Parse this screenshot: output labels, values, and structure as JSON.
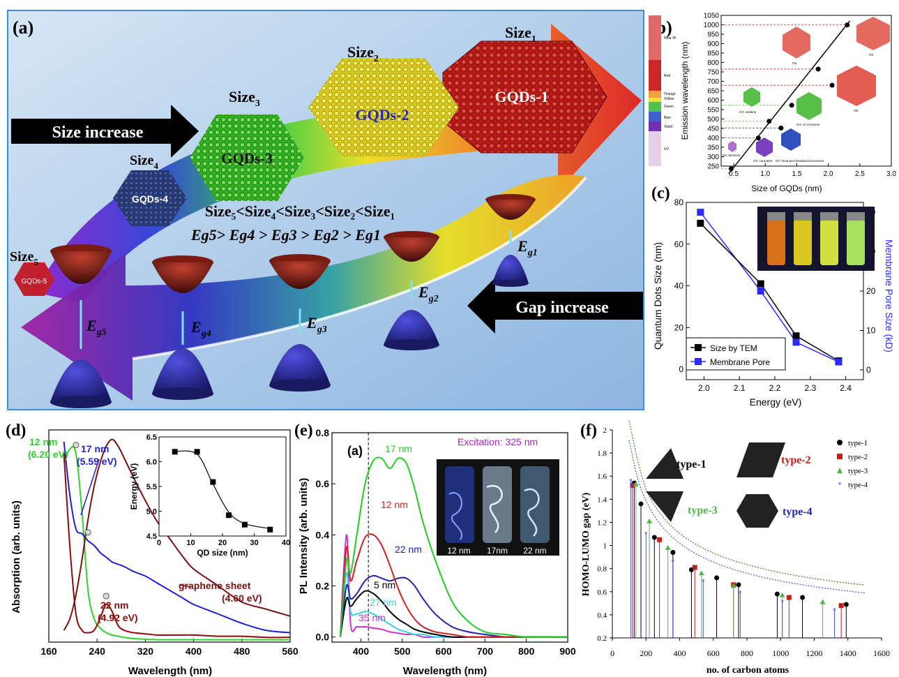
{
  "panel_a": {
    "label": "(a)",
    "sizes": [
      "Size",
      "Size",
      "Size",
      "Size",
      "Size"
    ],
    "size_subs": [
      "1",
      "2",
      "3",
      "4",
      "5"
    ],
    "gqds": [
      "GQDs-1",
      "GQDs-2",
      "GQDs-3",
      "GQDs-4",
      "GQDs-5"
    ],
    "size_increase": "Size increase",
    "gap_increase": "Gap increase",
    "ineq_size": "Size₅<Size₄<Size₃<Size₂<Size₁",
    "ineq_energy": "Eg5> Eg4 > Eg3 > Eg2 > Eg1",
    "gap_labels": [
      "E",
      "E",
      "E",
      "E",
      "E"
    ],
    "gap_subs": [
      "g1",
      "g2",
      "g3",
      "g4",
      "g5"
    ],
    "colors": {
      "bg": "#a6c6e6",
      "frame": "#3a8fd0",
      "cone_top": "#8e1b12",
      "cone_bottom": "#23238a",
      "gap_arrow": "#7fe3f0"
    }
  },
  "panel_b": {
    "label": "(b)",
    "xlabel": "Size of GQDs (nm)",
    "ylabel": "Emission wavelength (nm)",
    "xticks": [
      "0.5",
      "1.0",
      "1.5",
      "2.0",
      "2.5",
      "3.0"
    ],
    "yticks": [
      "250",
      "300",
      "350",
      "400",
      "450",
      "500",
      "550",
      "600",
      "650",
      "700",
      "750",
      "800",
      "850",
      "900",
      "950",
      "1000",
      "1050"
    ],
    "bands": [
      "Near IR",
      "Red",
      "Orange",
      "Yellow",
      "Green",
      "Blue",
      "Violet",
      "UV"
    ],
    "molecule_labels": [
      "G1: benzene",
      "G2: coronene",
      "G3: ovalene",
      "G4: cir-coronene",
      "G5",
      "G6",
      "G7: hexa-peri-hexabenzocoronene",
      "G8"
    ]
  },
  "panel_c": {
    "label": "(c)",
    "xlabel": "Energy (eV)",
    "ylabel_left": "Quantum Dots Size (nm)",
    "ylabel_right": "Membrane Pore Size (kD)",
    "xticks": [
      "2.0",
      "2.1",
      "2.2",
      "2.3",
      "2.4"
    ],
    "yticks_left": [
      "0",
      "20",
      "40",
      "60",
      "80"
    ],
    "yticks_right": [
      "0",
      "10",
      "20",
      "30",
      "40"
    ],
    "legend": [
      "Size by TEM",
      "Membrane Pore"
    ],
    "colors": {
      "tem": "#000000",
      "pore": "#2b2bff"
    }
  },
  "panel_d": {
    "label": "(d)",
    "xlabel": "Wavelength (nm)",
    "ylabel": "Absorption (arb. units)",
    "xticks": [
      "160",
      "240",
      "320",
      "400",
      "480",
      "560"
    ],
    "ann_12": "12 nm",
    "ann_12e": "(6.20 eV)",
    "ann_17": "17 nm",
    "ann_17e": "(5.59 eV)",
    "ann_22": "22 nm",
    "ann_22e": "(4.92 eV)",
    "ann_gs": "graphene sheet",
    "ann_gse": "(4.60 eV)",
    "inset": {
      "xlabel": "QD size (nm)",
      "ylabel": "Energy (eV)",
      "xticks": [
        "0",
        "10",
        "20",
        "30",
        "40"
      ],
      "yticks": [
        "4.5",
        "5.0",
        "5.5",
        "6.0",
        "6.5"
      ]
    },
    "colors": {
      "c12": "#2fd12f",
      "c17": "#1f1fd0",
      "c22": "#8b0a0a",
      "gs": "#7a1010"
    }
  },
  "panel_e": {
    "label": "(e)",
    "sub_label": "(a)",
    "xlabel": "Wavelength (nm)",
    "ylabel": "PL Intensity (arb. units)",
    "xticks": [
      "400",
      "500",
      "600",
      "700",
      "800",
      "900"
    ],
    "yticks": [
      "0.0",
      "0.2",
      "0.4",
      "0.6",
      "0.8"
    ],
    "excitation": "Excitation: 325 nm",
    "curve_labels": [
      "17 nm",
      "12 nm",
      "22 nm",
      "5 nm",
      "27 nm",
      "35 nm"
    ],
    "photo_labels": [
      "12 nm",
      "17nm",
      "22 nm"
    ],
    "colors": {
      "n17": "#22cc22",
      "n12": "#cc2222",
      "n22": "#2222aa",
      "n5": "#000000",
      "n27": "#33d6e0",
      "n35": "#cc33cc"
    }
  },
  "panel_f": {
    "label": "(f)",
    "xlabel": "no. of carbon atoms",
    "ylabel": "HOMO-LUMO gap (eV)",
    "xticks": [
      "0",
      "200",
      "400",
      "600",
      "800",
      "1000",
      "1200",
      "1400",
      "1600"
    ],
    "yticks": [
      "0.2",
      "0.4",
      "0.6",
      "0.8",
      "1",
      "1.2",
      "1.4",
      "1.6",
      "1.8",
      "2"
    ],
    "types": [
      "type-1",
      "type-2",
      "type-3",
      "type-4"
    ],
    "colors": {
      "t1": "#000000",
      "t2": "#c0201a",
      "t3": "#4db848",
      "t4": "#5050d0"
    }
  },
  "chart_data": [
    {
      "type": "scatter",
      "panel": "b",
      "xlabel": "Size of GQDs (nm)",
      "ylabel": "Emission wavelength (nm)",
      "xlim": [
        0.3,
        3.0
      ],
      "ylim": [
        250,
        1050
      ],
      "x": [
        0.46,
        0.89,
        1.06,
        1.25,
        1.42,
        1.84,
        2.06,
        2.3
      ],
      "y": [
        236,
        399,
        488,
        452,
        573,
        765,
        679,
        999
      ]
    },
    {
      "type": "line",
      "panel": "c",
      "xlabel": "Energy (eV)",
      "ylabel": "Quantum Dots Size (nm)",
      "ylabel_right": "Membrane Pore Size (kD)",
      "xlim": [
        1.95,
        2.45
      ],
      "ylim": [
        -5,
        80
      ],
      "ylim_right": [
        -2.5,
        42.5
      ],
      "x": [
        1.99,
        2.16,
        2.26,
        2.38
      ],
      "series": [
        {
          "name": "Size by TEM",
          "axis": "left",
          "values": [
            70,
            41,
            16,
            4
          ]
        },
        {
          "name": "Membrane Pore",
          "axis": "right",
          "values": [
            40,
            20,
            7,
            2
          ]
        }
      ]
    },
    {
      "type": "line",
      "panel": "d",
      "xlabel": "Wavelength (nm)",
      "ylabel": "Absorption (arb. units)",
      "xlim": [
        160,
        560
      ],
      "x": [
        185,
        195,
        205,
        215,
        225,
        235,
        245,
        255,
        265,
        275,
        285,
        300,
        320,
        340,
        360,
        380,
        400,
        440,
        480,
        520,
        560
      ],
      "series": [
        {
          "name": "12 nm",
          "values": [
            0.76,
            0.82,
            0.8,
            0.55,
            0.22,
            0.1,
            0.06,
            0.04,
            0.03,
            0.025,
            0.02,
            0.015,
            0.012,
            0.01,
            0.01,
            0.01,
            0.01,
            0.01,
            0.01,
            0.01,
            0.01
          ]
        },
        {
          "name": "17 nm",
          "values": [
            0.85,
            0.62,
            0.48,
            0.46,
            0.43,
            0.41,
            0.38,
            0.36,
            0.34,
            0.33,
            0.32,
            0.3,
            0.28,
            0.25,
            0.22,
            0.19,
            0.16,
            0.12,
            0.08,
            0.05,
            0.04
          ]
        },
        {
          "name": "22 nm",
          "values": [
            0.8,
            0.4,
            0.12,
            0.05,
            0.04,
            0.05,
            0.1,
            0.16,
            0.13,
            0.07,
            0.05,
            0.04,
            0.035,
            0.03,
            0.03,
            0.03,
            0.03,
            0.025,
            0.025,
            0.02,
            0.02
          ]
        },
        {
          "name": "graphene sheet",
          "values": [
            0.05,
            0.1,
            0.2,
            0.35,
            0.52,
            0.66,
            0.76,
            0.83,
            0.86,
            0.83,
            0.78,
            0.7,
            0.6,
            0.51,
            0.44,
            0.37,
            0.31,
            0.24,
            0.17,
            0.14,
            0.11
          ]
        }
      ]
    },
    {
      "type": "scatter",
      "panel": "d-inset",
      "xlabel": "QD size (nm)",
      "ylabel": "Energy (eV)",
      "xlim": [
        0,
        40
      ],
      "ylim": [
        4.5,
        6.5
      ],
      "x": [
        5,
        12,
        17,
        22,
        27,
        35
      ],
      "y": [
        6.2,
        6.2,
        5.59,
        4.92,
        4.73,
        4.63
      ]
    },
    {
      "type": "line",
      "panel": "e",
      "xlabel": "Wavelength (nm)",
      "ylabel": "PL Intensity (arb. units)",
      "xlim": [
        330,
        900
      ],
      "ylim": [
        -0.02,
        0.8
      ],
      "x": [
        350,
        365,
        375,
        390,
        410,
        430,
        450,
        470,
        490,
        510,
        530,
        550,
        580,
        620,
        660,
        700,
        750,
        800,
        900
      ],
      "series": [
        {
          "name": "17 nm",
          "values": [
            0.0,
            0.3,
            0.25,
            0.4,
            0.6,
            0.69,
            0.7,
            0.66,
            0.7,
            0.68,
            0.58,
            0.45,
            0.3,
            0.14,
            0.06,
            0.02,
            0.01,
            0.0,
            0.0
          ]
        },
        {
          "name": "12 nm",
          "values": [
            0.0,
            0.35,
            0.22,
            0.3,
            0.39,
            0.4,
            0.36,
            0.28,
            0.19,
            0.12,
            0.07,
            0.04,
            0.02,
            0.01,
            0.0,
            0.0,
            0.0,
            0.0,
            0.0
          ]
        },
        {
          "name": "22 nm",
          "values": [
            0.0,
            0.2,
            0.15,
            0.17,
            0.22,
            0.24,
            0.23,
            0.22,
            0.23,
            0.23,
            0.2,
            0.15,
            0.09,
            0.04,
            0.02,
            0.01,
            0.0,
            0.0,
            0.0
          ]
        },
        {
          "name": "5 nm",
          "values": [
            0.0,
            0.15,
            0.12,
            0.15,
            0.18,
            0.17,
            0.14,
            0.1,
            0.07,
            0.05,
            0.03,
            0.02,
            0.01,
            0.0,
            0.0,
            0.0,
            0.0,
            0.0,
            0.0
          ]
        },
        {
          "name": "27 nm",
          "values": [
            0.0,
            0.25,
            0.1,
            0.09,
            0.1,
            0.09,
            0.07,
            0.05,
            0.03,
            0.02,
            0.01,
            0.01,
            0.0,
            0.0,
            0.0,
            0.0,
            0.0,
            0.0,
            0.0
          ]
        },
        {
          "name": "35 nm",
          "values": [
            0.0,
            0.4,
            0.05,
            0.04,
            0.04,
            0.035,
            0.03,
            0.02,
            0.015,
            0.01,
            0.01,
            0.0,
            0.0,
            0.0,
            0.0,
            0.0,
            0.0,
            0.0,
            0.0
          ]
        }
      ]
    },
    {
      "type": "scatter",
      "panel": "f",
      "xlabel": "no. of carbon atoms",
      "ylabel": "HOMO-LUMO gap (eV)",
      "xlim": [
        0,
        1600
      ],
      "ylim": [
        0.2,
        2.0
      ],
      "series": [
        {
          "name": "type-1",
          "x": [
            130,
            170,
            250,
            360,
            470,
            620,
            750,
            980,
            1130,
            1390
          ],
          "y": [
            1.54,
            1.36,
            1.07,
            0.94,
            0.79,
            0.72,
            0.66,
            0.58,
            0.55,
            0.49
          ]
        },
        {
          "name": "type-2",
          "x": [
            120,
            280,
            490,
            720,
            1050,
            1360
          ],
          "y": [
            1.52,
            1.05,
            0.81,
            0.66,
            0.55,
            0.48
          ]
        },
        {
          "name": "type-3",
          "x": [
            140,
            220,
            330,
            530,
            720,
            1010,
            1250
          ],
          "y": [
            1.53,
            1.21,
            0.98,
            0.76,
            0.65,
            0.57,
            0.51
          ]
        },
        {
          "name": "type-4",
          "x": [
            110,
            200,
            360,
            540,
            760,
            1010,
            1320
          ],
          "y": [
            1.56,
            1.1,
            0.86,
            0.69,
            0.59,
            0.51,
            0.44
          ]
        }
      ]
    }
  ]
}
